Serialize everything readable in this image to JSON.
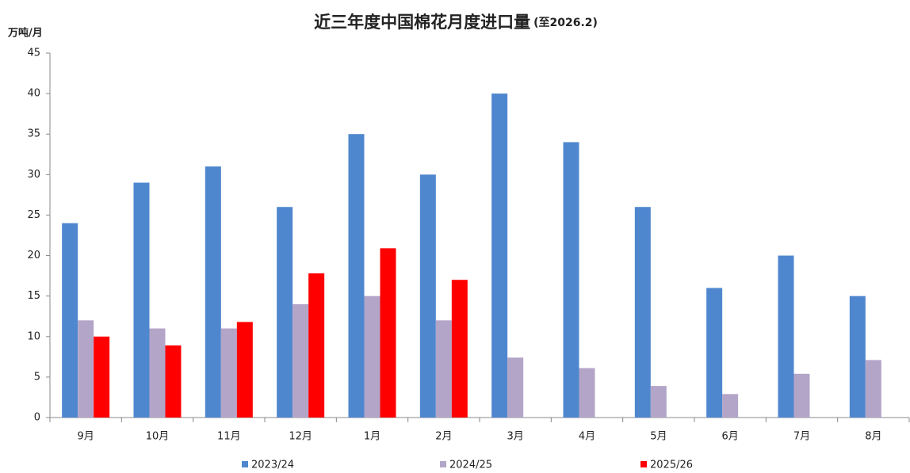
{
  "chart_data": {
    "type": "bar",
    "title": "近三年度中国棉花月度进口量",
    "subtitle": "(至2026.2)",
    "y_axis_label": "万吨/月",
    "categories": [
      "9月",
      "10月",
      "11月",
      "12月",
      "1月",
      "2月",
      "3月",
      "4月",
      "5月",
      "6月",
      "7月",
      "8月"
    ],
    "series": [
      {
        "name": "2023/24",
        "color": "#4f87cf",
        "values": [
          24,
          29,
          31,
          26,
          35,
          30,
          40,
          34,
          26,
          16,
          20,
          15
        ]
      },
      {
        "name": "2024/25",
        "color": "#b3a5c8",
        "values": [
          12,
          11,
          11,
          14,
          15,
          12,
          7.4,
          6.1,
          3.9,
          2.9,
          5.4,
          7.1
        ]
      },
      {
        "name": "2025/26",
        "color": "#ff0000",
        "values": [
          10,
          8.9,
          11.8,
          17.8,
          20.9,
          17,
          null,
          null,
          null,
          null,
          null,
          null
        ]
      }
    ],
    "ylim": [
      0,
      45
    ],
    "yticks": [
      0,
      5,
      10,
      15,
      20,
      25,
      30,
      35,
      40,
      45
    ],
    "grid": false,
    "legend": "bottom"
  }
}
